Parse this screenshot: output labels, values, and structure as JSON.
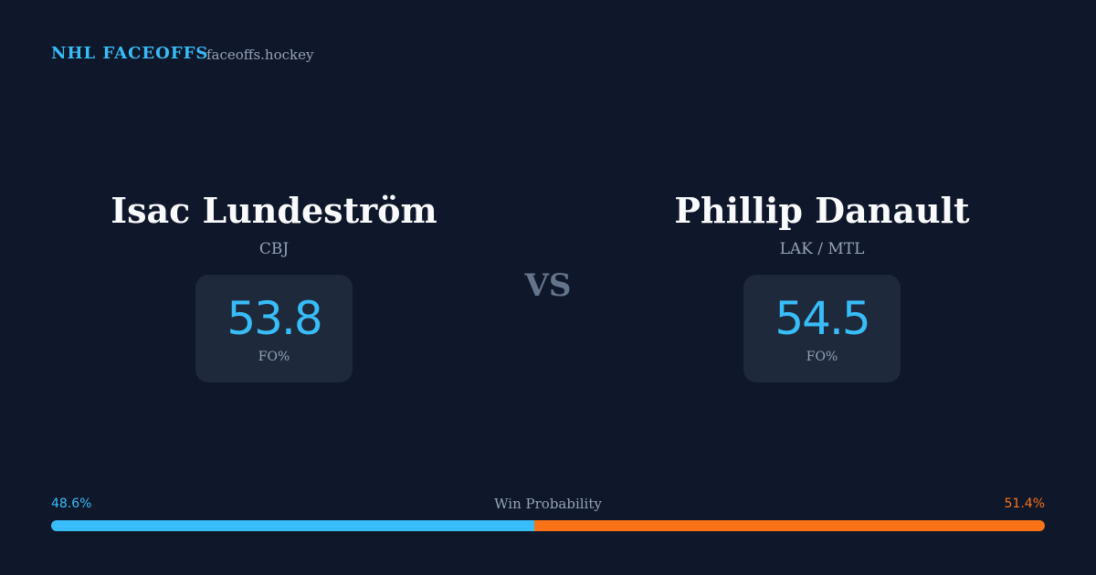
{
  "header": {
    "brand": "NHL FACEOFFS",
    "site": "faceoffs.hockey"
  },
  "players": [
    {
      "name": "Isac Lundeström",
      "team": "CBJ",
      "fo_pct": 53.8,
      "fo_label": "FO%"
    },
    {
      "name": "Phillip Danault",
      "team": "LAK / MTL",
      "fo_pct": 54.5,
      "fo_label": "FO%"
    }
  ],
  "vs": "VS",
  "win_probability": {
    "title": "Win Probability",
    "values": [
      48.6,
      51.4
    ],
    "value_labels": [
      "48.6%",
      "51.4%"
    ],
    "colors": [
      "#38bdf8",
      "#f97316"
    ]
  }
}
